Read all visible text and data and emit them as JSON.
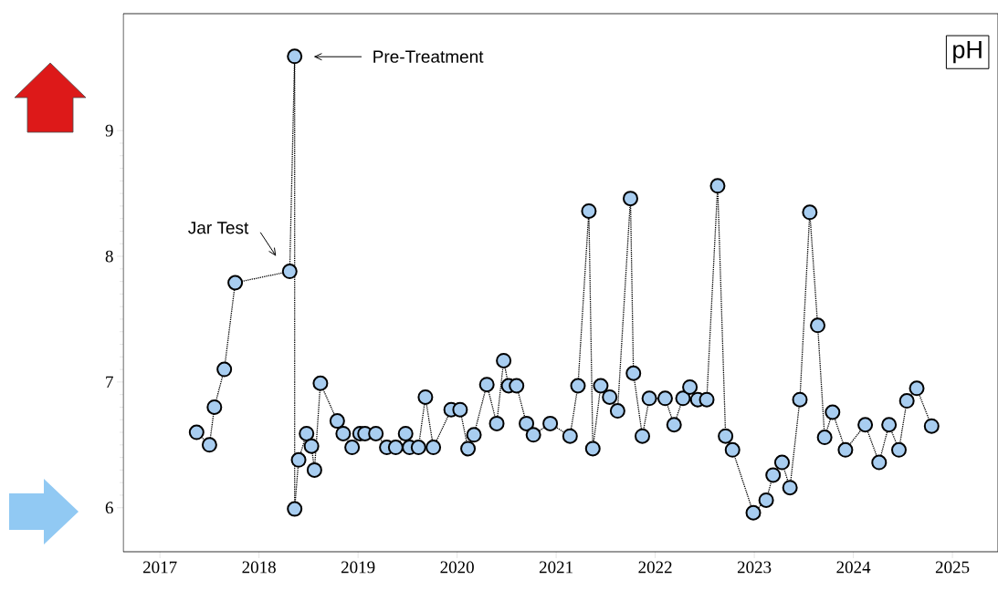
{
  "chart_data": {
    "type": "line",
    "title": "pH",
    "x": [
      2017.37,
      2017.5,
      2017.55,
      2017.65,
      2017.76,
      2018.31,
      2018.36,
      2018.36,
      2018.4,
      2018.48,
      2018.53,
      2018.56,
      2018.62,
      2018.79,
      2018.85,
      2018.94,
      2019.02,
      2019.07,
      2019.18,
      2019.29,
      2019.38,
      2019.48,
      2019.52,
      2019.61,
      2019.68,
      2019.76,
      2019.94,
      2020.03,
      2020.11,
      2020.17,
      2020.3,
      2020.4,
      2020.47,
      2020.52,
      2020.6,
      2020.7,
      2020.77,
      2020.94,
      2021.14,
      2021.22,
      2021.33,
      2021.37,
      2021.45,
      2021.54,
      2021.62,
      2021.75,
      2021.78,
      2021.87,
      2021.94,
      2022.1,
      2022.19,
      2022.28,
      2022.35,
      2022.43,
      2022.52,
      2022.63,
      2022.71,
      2022.78,
      2022.99,
      2023.12,
      2023.19,
      2023.28,
      2023.36,
      2023.46,
      2023.56,
      2023.64,
      2023.71,
      2023.79,
      2023.92,
      2024.12,
      2024.26,
      2024.36,
      2024.46,
      2024.54,
      2024.64,
      2024.79
    ],
    "series": [
      {
        "color": "#a8cdf0",
        "values": [
          6.6,
          6.5,
          6.8,
          7.1,
          7.79,
          7.88,
          9.59,
          5.99,
          6.38,
          6.59,
          6.49,
          6.3,
          6.99,
          6.69,
          6.59,
          6.48,
          6.59,
          6.59,
          6.59,
          6.48,
          6.48,
          6.59,
          6.48,
          6.48,
          6.88,
          6.48,
          6.78,
          6.78,
          6.47,
          6.58,
          6.98,
          6.67,
          7.17,
          6.97,
          6.97,
          6.67,
          6.58,
          6.67,
          6.57,
          6.97,
          8.36,
          6.47,
          6.97,
          6.88,
          6.77,
          8.46,
          7.07,
          6.57,
          6.87,
          6.87,
          6.66,
          6.87,
          6.96,
          6.86,
          6.86,
          8.56,
          6.57,
          6.46,
          5.96,
          6.06,
          6.26,
          6.36,
          6.16,
          6.86,
          8.35,
          7.45,
          6.56,
          6.76,
          6.46,
          6.66,
          6.36,
          6.66,
          6.46,
          6.85,
          6.95,
          6.65
        ]
      }
    ],
    "xlim": [
      2016.63,
      2025.46
    ],
    "ylim": [
      5.65,
      9.93
    ],
    "xticks": [
      2017,
      2018,
      2019,
      2020,
      2021,
      2022,
      2023,
      2024,
      2025
    ],
    "yticks": [
      6,
      7,
      8,
      9
    ],
    "marker": "circle",
    "line_style": "dotted",
    "grid": false,
    "annotations": [
      "Pre-Treatment",
      "Jar Test"
    ]
  }
}
